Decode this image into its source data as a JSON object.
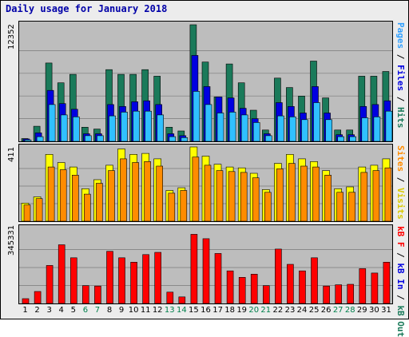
{
  "title": "Daily usage for January 2018",
  "colors": {
    "hits": "#1a7a5a",
    "files": "#0000e0",
    "pages": "#30c0ff",
    "visits": "#ffff00",
    "sites": "#ff8c00",
    "kb_in": "#ff0000",
    "weekend_label": "#00804c",
    "weekday_label": "#000000"
  },
  "chart_data": [
    {
      "type": "bar",
      "panel": "top",
      "max_label": "12352",
      "ylim": [
        0,
        12352
      ],
      "right_label": {
        "parts": [
          "Pages",
          " / ",
          "Files",
          " / ",
          "Hits"
        ]
      },
      "categories": [
        "1",
        "2",
        "3",
        "4",
        "5",
        "6",
        "7",
        "8",
        "9",
        "10",
        "11",
        "12",
        "13",
        "14",
        "15",
        "16",
        "17",
        "18",
        "19",
        "20",
        "21",
        "22",
        "23",
        "24",
        "25",
        "26",
        "27",
        "28",
        "29",
        "30",
        "31"
      ],
      "weekend_days": [
        "6",
        "7",
        "13",
        "14",
        "20",
        "21",
        "27",
        "28"
      ],
      "series": [
        {
          "name": "Hits",
          "values": [
            300,
            1600,
            8300,
            6200,
            7100,
            1500,
            1300,
            7600,
            7100,
            7100,
            7600,
            6900,
            1500,
            1100,
            12352,
            8400,
            4700,
            8200,
            6200,
            3300,
            1200,
            6700,
            5700,
            4800,
            8500,
            4600,
            1200,
            1200,
            6900,
            6900,
            7400
          ]
        },
        {
          "name": "Files",
          "values": [
            250,
            900,
            5400,
            4000,
            3400,
            800,
            800,
            3900,
            3700,
            4200,
            4300,
            3900,
            800,
            600,
            9100,
            5800,
            4700,
            4600,
            3500,
            2400,
            800,
            4100,
            3700,
            3000,
            5800,
            3000,
            700,
            700,
            3700,
            3900,
            4300
          ]
        },
        {
          "name": "Pages",
          "values": [
            150,
            500,
            3900,
            2800,
            2600,
            600,
            600,
            2700,
            3100,
            3200,
            3200,
            2800,
            500,
            400,
            5300,
            3900,
            3000,
            3100,
            2800,
            2000,
            600,
            2700,
            2600,
            2300,
            4100,
            2300,
            500,
            500,
            2500,
            2600,
            3200
          ]
        }
      ]
    },
    {
      "type": "bar",
      "panel": "middle",
      "max_label": "411",
      "ylim": [
        0,
        411
      ],
      "right_label": {
        "parts": [
          "Sites",
          " / ",
          "Visits"
        ]
      },
      "categories": [
        "1",
        "2",
        "3",
        "4",
        "5",
        "6",
        "7",
        "8",
        "9",
        "10",
        "11",
        "12",
        "13",
        "14",
        "15",
        "16",
        "17",
        "18",
        "19",
        "20",
        "21",
        "22",
        "23",
        "24",
        "25",
        "26",
        "27",
        "28",
        "29",
        "30",
        "31"
      ],
      "series": [
        {
          "name": "Visits",
          "values": [
            100,
            135,
            370,
            325,
            300,
            180,
            230,
            310,
            400,
            370,
            375,
            345,
            170,
            185,
            411,
            360,
            315,
            300,
            295,
            265,
            175,
            320,
            370,
            345,
            330,
            280,
            180,
            190,
            300,
            310,
            345
          ]
        },
        {
          "name": "Sites",
          "values": [
            90,
            125,
            300,
            285,
            255,
            150,
            210,
            280,
            345,
            325,
            330,
            305,
            155,
            170,
            355,
            310,
            280,
            275,
            270,
            240,
            160,
            290,
            320,
            305,
            300,
            255,
            160,
            160,
            270,
            280,
            295
          ]
        }
      ]
    },
    {
      "type": "bar",
      "panel": "bottom",
      "max_label": "345331",
      "ylim": [
        0,
        345331
      ],
      "right_label": {
        "parts": [
          "kB F",
          " / ",
          "kB In",
          " / ",
          "kB Out"
        ]
      },
      "categories": [
        "1",
        "2",
        "3",
        "4",
        "5",
        "6",
        "7",
        "8",
        "9",
        "10",
        "11",
        "12",
        "13",
        "14",
        "15",
        "16",
        "17",
        "18",
        "19",
        "20",
        "21",
        "22",
        "23",
        "24",
        "25",
        "26",
        "27",
        "28",
        "29",
        "30",
        "31"
      ],
      "series": [
        {
          "name": "kB In",
          "values": [
            22000,
            55000,
            175000,
            270000,
            210000,
            82000,
            80000,
            240000,
            210000,
            190000,
            225000,
            235000,
            52000,
            30000,
            318000,
            298000,
            230000,
            150000,
            120000,
            135000,
            82000,
            250000,
            180000,
            150000,
            210000,
            80000,
            86000,
            88000,
            160000,
            140000,
            190000
          ]
        }
      ]
    }
  ]
}
